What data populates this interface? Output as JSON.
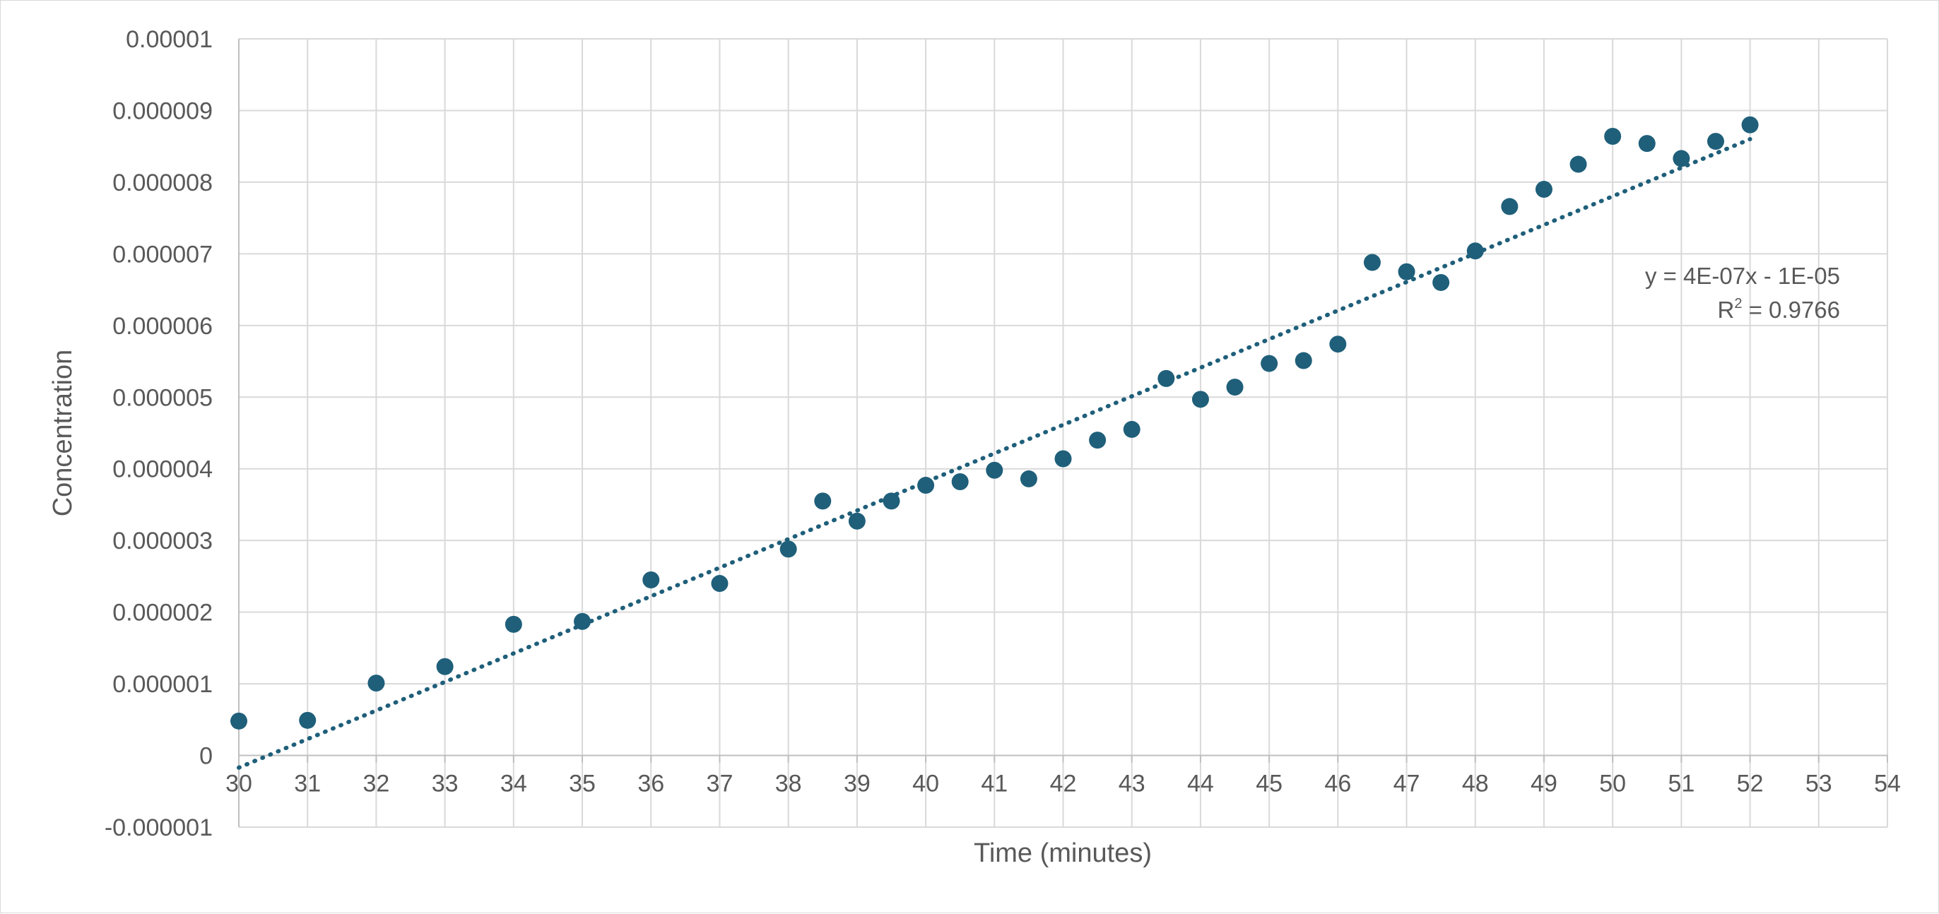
{
  "chart_data": {
    "type": "scatter",
    "title": "",
    "xlabel": "Time (minutes)",
    "ylabel": "Concentration",
    "xlim": [
      30,
      54
    ],
    "ylim": [
      -1e-06,
      1e-05
    ],
    "x_ticks": [
      30,
      31,
      32,
      33,
      34,
      35,
      36,
      37,
      38,
      39,
      40,
      41,
      42,
      43,
      44,
      45,
      46,
      47,
      48,
      49,
      50,
      51,
      52,
      53,
      54
    ],
    "x_tick_labels": [
      "30",
      "31",
      "32",
      "33",
      "34",
      "35",
      "36",
      "37",
      "38",
      "39",
      "40",
      "41",
      "42",
      "43",
      "44",
      "45",
      "46",
      "47",
      "48",
      "49",
      "50",
      "51",
      "52",
      "53",
      "54"
    ],
    "y_ticks": [
      -1e-06,
      0,
      1e-06,
      2e-06,
      3e-06,
      4e-06,
      5e-06,
      6e-06,
      7e-06,
      8e-06,
      9e-06,
      1e-05
    ],
    "y_tick_labels": [
      "-0.000001",
      "0",
      "0.000001",
      "0.000002",
      "0.000003",
      "0.000004",
      "0.000005",
      "0.000006",
      "0.000007",
      "0.000008",
      "0.000009",
      "0.00001"
    ],
    "grid": true,
    "legend": "none",
    "series": [
      {
        "color": "#1f5f7a",
        "x": [
          30,
          31,
          32,
          33,
          34,
          35,
          36,
          37,
          38,
          38.5,
          39,
          39.5,
          40,
          40.5,
          41,
          41.5,
          42,
          42.5,
          43,
          43.5,
          44,
          44.5,
          45,
          45.5,
          46,
          46.5,
          47,
          47.5,
          48,
          48.5,
          49,
          49.5,
          50,
          50.5,
          51,
          51.5,
          52
        ],
        "y": [
          4.8e-07,
          4.9e-07,
          1.01e-06,
          1.24e-06,
          1.83e-06,
          1.87e-06,
          2.45e-06,
          2.4e-06,
          2.88e-06,
          3.55e-06,
          3.27e-06,
          3.55e-06,
          3.77e-06,
          3.82e-06,
          3.98e-06,
          3.86e-06,
          4.14e-06,
          4.4e-06,
          4.55e-06,
          5.26e-06,
          4.97e-06,
          5.14e-06,
          5.47e-06,
          5.51e-06,
          5.74e-06,
          6.88e-06,
          6.75e-06,
          6.6e-06,
          7.04e-06,
          7.66e-06,
          7.9e-06,
          8.25e-06,
          8.64e-06,
          8.54e-06,
          8.33e-06,
          8.57e-06,
          8.8e-06
        ]
      }
    ],
    "trendline": {
      "type": "linear",
      "style": "dotted",
      "color": "#1f5f7a",
      "x_range": [
        30,
        52
      ],
      "y_start": -1.7e-07,
      "y_end": 8.6e-06,
      "equation": "y = 4E-07x - 1E-05",
      "r2_label": "R",
      "r2_sup": "2",
      "r2_value": " = 0.9766"
    }
  }
}
